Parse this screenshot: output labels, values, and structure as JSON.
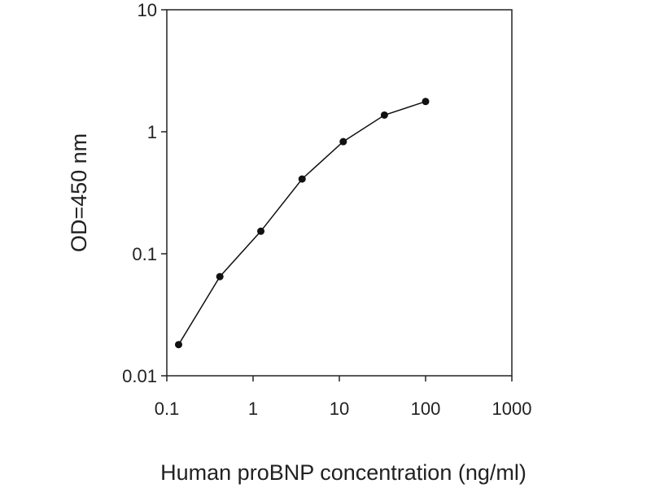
{
  "chart_data": {
    "type": "line",
    "title": "",
    "xlabel": "Human proBNP concentration (ng/ml)",
    "ylabel": "OD=450 nm",
    "x_scale": "log",
    "y_scale": "log",
    "xlim": [
      0.1,
      1000
    ],
    "ylim": [
      0.01,
      10
    ],
    "x_ticks": [
      "0.1",
      "1",
      "10",
      "100",
      "1000"
    ],
    "y_ticks": [
      "0.01",
      "0.1",
      "1",
      "10"
    ],
    "grid": false,
    "legend": "none",
    "series": [
      {
        "x": [
          0.137,
          0.412,
          1.23,
          3.7,
          11.1,
          33.3,
          100
        ],
        "y": [
          0.018,
          0.065,
          0.153,
          0.41,
          0.83,
          1.37,
          1.77
        ]
      }
    ],
    "colors": {
      "line": "#111111",
      "marker": "#111111",
      "axis": "#222222"
    }
  }
}
